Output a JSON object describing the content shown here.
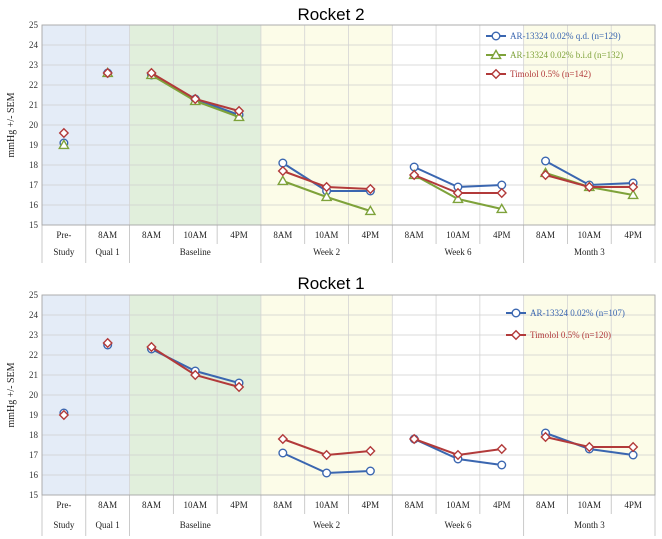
{
  "chart_data": [
    {
      "type": "line",
      "title": "Rocket 2",
      "ylabel": "mmHg +/- SEM",
      "ylim": [
        15,
        25
      ],
      "yticks": [
        15,
        16,
        17,
        18,
        19,
        20,
        21,
        22,
        23,
        24,
        25
      ],
      "legend_position": "top-right",
      "grid": true,
      "categories": [
        "Pre-Study",
        "8AM Qual 1",
        "8AM Baseline",
        "10AM Baseline",
        "4PM Baseline",
        "8AM Week 2",
        "10AM Week 2",
        "4PM Week 2",
        "8AM Week 6",
        "10AM Week 6",
        "4PM Week 6",
        "8AM Month 3",
        "10AM Month 3",
        "4PM Month 3"
      ],
      "category_rows": [
        {
          "ticks": [
            "Pre-",
            "8AM",
            "8AM",
            "10AM",
            "4PM",
            "8AM",
            "10AM",
            "4PM",
            "8AM",
            "10AM",
            "4PM",
            "8AM",
            "10AM",
            "4PM"
          ]
        },
        {
          "groups": [
            {
              "label": "Study",
              "span": 1
            },
            {
              "label": "Qual 1",
              "span": 1
            },
            {
              "label": "Baseline",
              "span": 3
            },
            {
              "label": "Week 2",
              "span": 3
            },
            {
              "label": "Week 6",
              "span": 3
            },
            {
              "label": "Month 3",
              "span": 3
            }
          ]
        }
      ],
      "regions": [
        {
          "start": 0,
          "end": 2,
          "color": "#e4ecf7"
        },
        {
          "start": 2,
          "end": 5,
          "color": "#e1efdc"
        },
        {
          "start": 5,
          "end": 8,
          "color": "#fcfce8"
        },
        {
          "start": 8,
          "end": 11,
          "color": "#ffffff"
        },
        {
          "start": 11,
          "end": 14,
          "color": "#fcfce8"
        }
      ],
      "series": [
        {
          "name": "AR-13324 0.02% q.d. (n=129)",
          "color": "#3a66b0",
          "marker": "circle",
          "values": [
            19.1,
            22.6,
            22.5,
            21.3,
            20.5,
            18.1,
            16.7,
            16.7,
            17.9,
            16.9,
            17.0,
            18.2,
            17.0,
            17.1
          ]
        },
        {
          "name": "AR-13324 0.02% b.i.d (n=132)",
          "color": "#7ea23a",
          "marker": "triangle",
          "values": [
            19.0,
            22.6,
            22.5,
            21.2,
            20.4,
            17.2,
            16.4,
            15.7,
            17.5,
            16.3,
            15.8,
            17.6,
            16.9,
            16.5
          ]
        },
        {
          "name": "Timolol 0.5% (n=142)",
          "color": "#b23a3a",
          "marker": "diamond",
          "values": [
            19.6,
            22.6,
            22.6,
            21.3,
            20.7,
            17.7,
            16.9,
            16.8,
            17.5,
            16.6,
            16.6,
            17.5,
            16.9,
            16.9
          ]
        }
      ],
      "connect_groups": [
        [
          2,
          4
        ],
        [
          5,
          7
        ],
        [
          8,
          10
        ],
        [
          11,
          13
        ]
      ]
    },
    {
      "type": "line",
      "title": "Rocket 1",
      "ylabel": "mmHg +/- SEM",
      "ylim": [
        15,
        25
      ],
      "yticks": [
        15,
        16,
        17,
        18,
        19,
        20,
        21,
        22,
        23,
        24,
        25
      ],
      "legend_position": "top-right",
      "grid": true,
      "categories": [
        "Pre-Study",
        "8AM Qual 1",
        "8AM Baseline",
        "10AM Baseline",
        "4PM Baseline",
        "8AM Week 2",
        "10AM Week 2",
        "4PM Week 2",
        "8AM Week 6",
        "10AM Week 6",
        "4PM Week 6",
        "8AM Month 3",
        "10AM Month 3",
        "4PM Month 3"
      ],
      "category_rows": [
        {
          "ticks": [
            "Pre-",
            "8AM",
            "8AM",
            "10AM",
            "4PM",
            "8AM",
            "10AM",
            "4PM",
            "8AM",
            "10AM",
            "4PM",
            "8AM",
            "10AM",
            "4PM"
          ]
        },
        {
          "groups": [
            {
              "label": "Study",
              "span": 1
            },
            {
              "label": "Qual 1",
              "span": 1
            },
            {
              "label": "Baseline",
              "span": 3
            },
            {
              "label": "Week 2",
              "span": 3
            },
            {
              "label": "Week 6",
              "span": 3
            },
            {
              "label": "Month 3",
              "span": 3
            }
          ]
        }
      ],
      "regions": [
        {
          "start": 0,
          "end": 2,
          "color": "#e4ecf7"
        },
        {
          "start": 2,
          "end": 5,
          "color": "#e1efdc"
        },
        {
          "start": 5,
          "end": 8,
          "color": "#fcfce8"
        },
        {
          "start": 8,
          "end": 11,
          "color": "#ffffff"
        },
        {
          "start": 11,
          "end": 14,
          "color": "#fcfce8"
        }
      ],
      "series": [
        {
          "name": "AR-13324 0.02% (n=107)",
          "color": "#3a66b0",
          "marker": "circle",
          "values": [
            19.1,
            22.5,
            22.3,
            21.2,
            20.6,
            17.1,
            16.1,
            16.2,
            17.8,
            16.8,
            16.5,
            18.1,
            17.3,
            17.0
          ]
        },
        {
          "name": "Timolol 0.5% (n=120)",
          "color": "#b23a3a",
          "marker": "diamond",
          "values": [
            19.0,
            22.6,
            22.4,
            21.0,
            20.4,
            17.8,
            17.0,
            17.2,
            17.8,
            17.0,
            17.3,
            17.9,
            17.4,
            17.4
          ]
        }
      ],
      "connect_groups": [
        [
          2,
          4
        ],
        [
          5,
          7
        ],
        [
          8,
          10
        ],
        [
          11,
          13
        ]
      ]
    }
  ]
}
